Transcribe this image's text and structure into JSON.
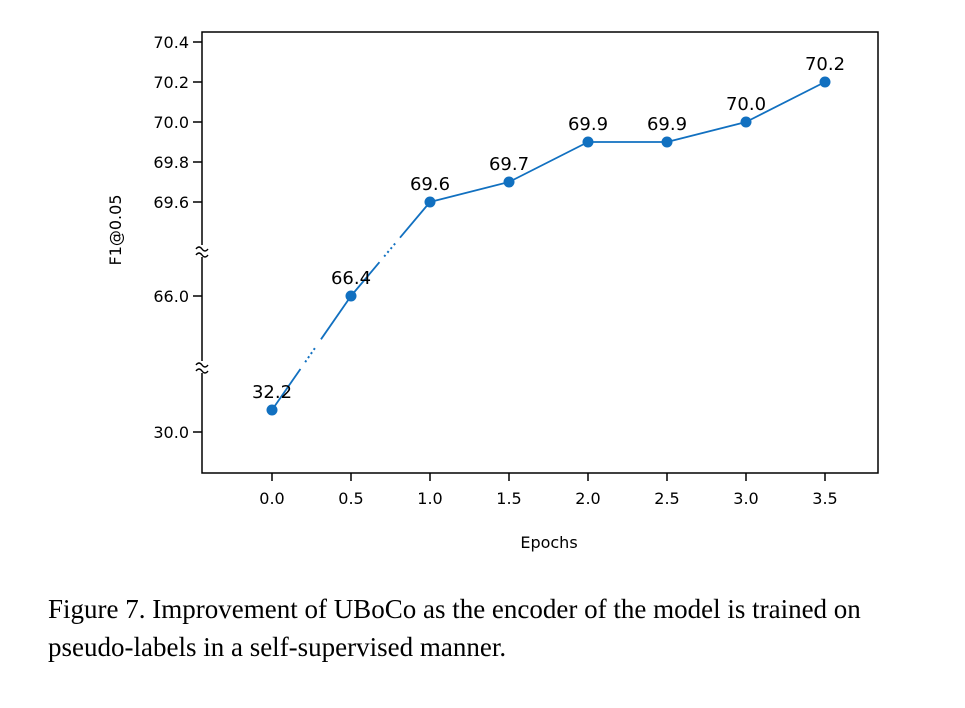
{
  "chart_data": {
    "type": "line",
    "xlabel": "Epochs",
    "ylabel": "F1@0.05",
    "x": [
      0.0,
      0.5,
      1.0,
      1.5,
      2.0,
      2.5,
      3.0,
      3.5
    ],
    "series": [
      {
        "values": [
          32.2,
          66.4,
          69.6,
          69.7,
          69.9,
          69.9,
          70.0,
          70.2
        ]
      }
    ],
    "data_labels": [
      "32.2",
      "66.4",
      "69.6",
      "69.7",
      "69.9",
      "69.9",
      "70.0",
      "70.2"
    ],
    "xticks": [
      "0.0",
      "0.5",
      "1.0",
      "1.5",
      "2.0",
      "2.5",
      "3.0",
      "3.5"
    ],
    "yticks": [
      "70.4",
      "70.2",
      "70.0",
      "69.8",
      "69.6",
      "66.0",
      "30.0"
    ],
    "y_axis_broken": true,
    "color": "#1170C0",
    "grid": false,
    "legend": "none"
  },
  "caption": "Figure 7. Improvement of UBoCo as the encoder of the model is trained on pseudo-labels in a self-supervised manner."
}
